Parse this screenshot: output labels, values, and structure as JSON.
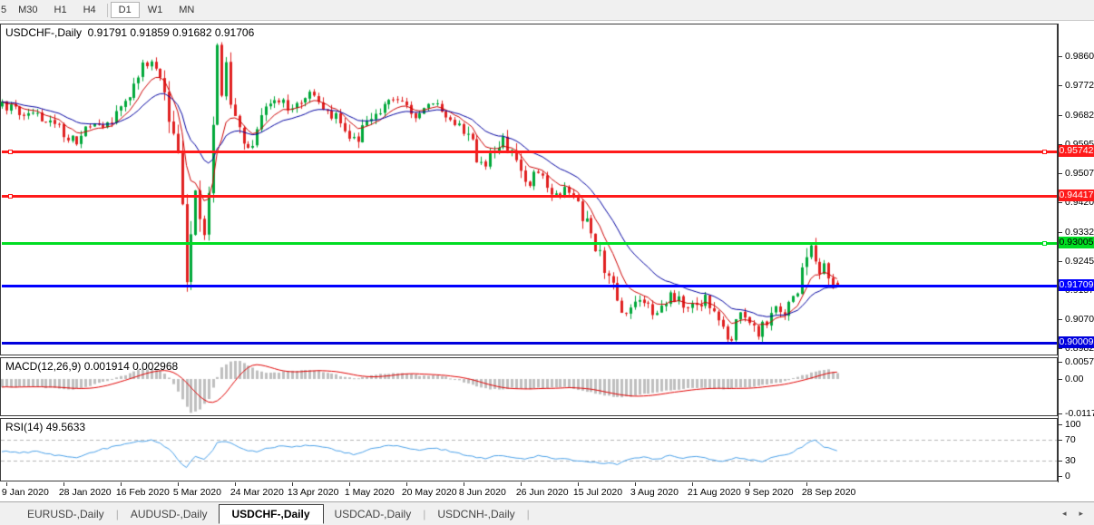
{
  "toolbar": {
    "timeframes": [
      "5",
      "M30",
      "H1",
      "H4",
      "D1",
      "W1",
      "MN"
    ],
    "active": "D1"
  },
  "price_header": {
    "symbol": "USDCHF-,Daily",
    "open": "0.91791",
    "high": "0.91859",
    "low": "0.91682",
    "close": "0.91706"
  },
  "macd_header": {
    "name": "MACD(12,26,9)",
    "main": "0.001914",
    "signal": "0.002968"
  },
  "rsi_header": {
    "name": "RSI(14)",
    "value": "49.5633"
  },
  "tab_bar": {
    "tabs": [
      "EURUSD-,Daily",
      "AUDUSD-,Daily",
      "USDCHF-,Daily",
      "USDCAD-,Daily",
      "USDCNH-,Daily"
    ],
    "active_tab": "USDCHF-,Daily",
    "scroll_left_icon": "◂",
    "scroll_right_icon": "▸"
  },
  "chart_data": {
    "type": "candlestick",
    "symbol": "USDCHF-,Daily",
    "timeframe": "D1",
    "bars": 191,
    "seed": 97531,
    "colors": {
      "bull": "#00a83a",
      "bear": "#e02020",
      "background": "#ffffff"
    },
    "y_axis": {
      "tick_labels": [
        "0.98600",
        "0.97725",
        "0.96825",
        "0.95950",
        "0.95075",
        "0.94200",
        "0.93325",
        "0.92450",
        "0.91575",
        "0.90700",
        "0.89825"
      ],
      "ylim": [
        0.89608,
        0.99581
      ]
    },
    "x_axis": {
      "tick_labels": [
        "9 Jan 2020",
        "28 Jan 2020",
        "16 Feb 2020",
        "5 Mar 2020",
        "24 Mar 2020",
        "13 Apr 2020",
        "1 May 2020",
        "20 May 2020",
        "8 Jun 2020",
        "26 Jun 2020",
        "15 Jul 2020",
        "3 Aug 2020",
        "21 Aug 2020",
        "9 Sep 2020",
        "28 Sep 2020"
      ],
      "first_tick_bar_index": 1,
      "bars_per_tick": 13
    },
    "last_bar_ohlc": {
      "open": 0.91791,
      "high": 0.91859,
      "low": 0.91682,
      "close": 0.91706
    },
    "price_path": [
      [
        0,
        0.9718
      ],
      [
        4,
        0.9695
      ],
      [
        8,
        0.9683
      ],
      [
        12,
        0.9655
      ],
      [
        15,
        0.9622
      ],
      [
        17,
        0.9605
      ],
      [
        19,
        0.9638
      ],
      [
        22,
        0.9652
      ],
      [
        25,
        0.9672
      ],
      [
        28,
        0.9705
      ],
      [
        30,
        0.9762
      ],
      [
        32,
        0.9828
      ],
      [
        34,
        0.984
      ],
      [
        36,
        0.9808
      ],
      [
        37,
        0.9775
      ],
      [
        38,
        0.97
      ],
      [
        39,
        0.964
      ],
      [
        40,
        0.956
      ],
      [
        41,
        0.942
      ],
      [
        42,
        0.9195
      ],
      [
        43,
        0.932
      ],
      [
        44,
        0.945
      ],
      [
        45,
        0.9395
      ],
      [
        46,
        0.931
      ],
      [
        47,
        0.944
      ],
      [
        48,
        0.966
      ],
      [
        49,
        0.9893
      ],
      [
        50,
        0.976
      ],
      [
        51,
        0.982
      ],
      [
        52,
        0.97
      ],
      [
        54,
        0.9648
      ],
      [
        56,
        0.9585
      ],
      [
        58,
        0.964
      ],
      [
        60,
        0.9692
      ],
      [
        63,
        0.973
      ],
      [
        66,
        0.97
      ],
      [
        69,
        0.9748
      ],
      [
        72,
        0.9718
      ],
      [
        75,
        0.9688
      ],
      [
        78,
        0.9638
      ],
      [
        80,
        0.9605
      ],
      [
        83,
        0.9658
      ],
      [
        86,
        0.97
      ],
      [
        89,
        0.9726
      ],
      [
        92,
        0.9708
      ],
      [
        95,
        0.9678
      ],
      [
        98,
        0.9712
      ],
      [
        101,
        0.9688
      ],
      [
        104,
        0.9655
      ],
      [
        106,
        0.9615
      ],
      [
        108,
        0.9558
      ],
      [
        110,
        0.9528
      ],
      [
        112,
        0.958
      ],
      [
        114,
        0.9615
      ],
      [
        116,
        0.9558
      ],
      [
        118,
        0.9502
      ],
      [
        120,
        0.9472
      ],
      [
        122,
        0.9512
      ],
      [
        124,
        0.9482
      ],
      [
        126,
        0.9445
      ],
      [
        128,
        0.9468
      ],
      [
        130,
        0.9432
      ],
      [
        132,
        0.9385
      ],
      [
        134,
        0.9322
      ],
      [
        136,
        0.9252
      ],
      [
        138,
        0.9182
      ],
      [
        140,
        0.9132
      ],
      [
        142,
        0.9082
      ],
      [
        144,
        0.9112
      ],
      [
        146,
        0.9132
      ],
      [
        148,
        0.9082
      ],
      [
        150,
        0.9108
      ],
      [
        152,
        0.9142
      ],
      [
        154,
        0.9122
      ],
      [
        156,
        0.9092
      ],
      [
        158,
        0.9112
      ],
      [
        160,
        0.9132
      ],
      [
        162,
        0.9082
      ],
      [
        164,
        0.9042
      ],
      [
        166,
        0.9006
      ],
      [
        168,
        0.9082
      ],
      [
        170,
        0.9052
      ],
      [
        172,
        0.9022
      ],
      [
        174,
        0.9072
      ],
      [
        176,
        0.9102
      ],
      [
        178,
        0.9082
      ],
      [
        180,
        0.9122
      ],
      [
        181,
        0.9162
      ],
      [
        182,
        0.9212
      ],
      [
        183,
        0.9252
      ],
      [
        184,
        0.9285
      ],
      [
        185,
        0.9242
      ],
      [
        186,
        0.9195
      ],
      [
        187,
        0.9225
      ],
      [
        188,
        0.9185
      ],
      [
        189,
        0.9155
      ],
      [
        190,
        0.9171
      ]
    ],
    "moving_averages": [
      {
        "name": "fast-ma",
        "period": 8,
        "color": "#cc0000"
      },
      {
        "name": "slow-ma",
        "period": 20,
        "color": "#0000a0"
      }
    ],
    "levels": [
      {
        "price": 0.95742,
        "label": "0.95742",
        "color": "#ff1a1a",
        "label_text_color": "#ffffff",
        "thickness": 3,
        "handles": [
          "left",
          "right"
        ]
      },
      {
        "price": 0.94417,
        "label": "0.94417",
        "color": "#ff1a1a",
        "label_text_color": "#ffffff",
        "thickness": 3,
        "handles": [
          "left"
        ]
      },
      {
        "price": 0.93005,
        "label": "0.93005",
        "color": "#00dd22",
        "label_text_color": "#000000",
        "thickness": 3,
        "handles": [
          "right"
        ]
      },
      {
        "price": 0.91709,
        "label": "0.91709",
        "color": "#0000ff",
        "label_text_color": "#ffffff",
        "thickness": 3,
        "handles": []
      },
      {
        "price": 0.90009,
        "label": "0.90009",
        "color": "#0000dd",
        "label_text_color": "#ffffff",
        "thickness": 3,
        "handles": []
      }
    ],
    "macd": {
      "label": "MACD(12,26,9)",
      "main_value": 0.001914,
      "signal_value": 0.002968,
      "axis_labels": [
        "0.005744",
        "0.00",
        "-0.011738"
      ],
      "axis_values": [
        0.005744,
        0,
        -0.011738
      ],
      "ylim": [
        -0.01271,
        0.00744
      ],
      "histogram_color": "#bfbfbf",
      "signal_color": "#e00000",
      "histogram_path": [
        [
          0,
          -0.0028
        ],
        [
          6,
          -0.0026
        ],
        [
          12,
          -0.0031
        ],
        [
          16,
          -0.0036
        ],
        [
          20,
          -0.0022
        ],
        [
          24,
          -0.0006
        ],
        [
          28,
          0.0014
        ],
        [
          32,
          0.0036
        ],
        [
          36,
          0.003
        ],
        [
          38,
          0.0004
        ],
        [
          40,
          -0.0042
        ],
        [
          42,
          -0.0095
        ],
        [
          43,
          -0.0117
        ],
        [
          45,
          -0.0104
        ],
        [
          47,
          -0.0068
        ],
        [
          48,
          -0.003
        ],
        [
          49,
          0.0008
        ],
        [
          50,
          0.0038
        ],
        [
          52,
          0.0058
        ],
        [
          54,
          0.0062
        ],
        [
          56,
          0.0046
        ],
        [
          58,
          0.003
        ],
        [
          60,
          0.002
        ],
        [
          63,
          0.0023
        ],
        [
          66,
          0.0028
        ],
        [
          69,
          0.0032
        ],
        [
          72,
          0.0028
        ],
        [
          75,
          0.0019
        ],
        [
          78,
          0.0007
        ],
        [
          80,
          0.0001
        ],
        [
          83,
          0.0009
        ],
        [
          86,
          0.0016
        ],
        [
          89,
          0.0021
        ],
        [
          92,
          0.0018
        ],
        [
          95,
          0.0012
        ],
        [
          98,
          0.0013
        ],
        [
          101,
          0.0008
        ],
        [
          104,
          -0.0006
        ],
        [
          107,
          -0.0021
        ],
        [
          110,
          -0.0033
        ],
        [
          113,
          -0.0036
        ],
        [
          116,
          -0.0031
        ],
        [
          119,
          -0.0036
        ],
        [
          122,
          -0.0031
        ],
        [
          125,
          -0.0029
        ],
        [
          128,
          -0.0027
        ],
        [
          131,
          -0.0036
        ],
        [
          134,
          -0.0046
        ],
        [
          137,
          -0.0056
        ],
        [
          140,
          -0.0063
        ],
        [
          143,
          -0.0059
        ],
        [
          146,
          -0.0051
        ],
        [
          149,
          -0.0044
        ],
        [
          152,
          -0.0039
        ],
        [
          155,
          -0.0034
        ],
        [
          158,
          -0.0029
        ],
        [
          161,
          -0.0032
        ],
        [
          164,
          -0.0035
        ],
        [
          167,
          -0.0029
        ],
        [
          170,
          -0.0027
        ],
        [
          173,
          -0.0021
        ],
        [
          176,
          -0.0014
        ],
        [
          179,
          -0.0004
        ],
        [
          182,
          0.0012
        ],
        [
          184,
          0.0021
        ],
        [
          186,
          0.0029
        ],
        [
          188,
          0.0033
        ],
        [
          190,
          0.0019
        ]
      ]
    },
    "rsi": {
      "label": "RSI(14)",
      "value": 49.5633,
      "levels": [
        70,
        30
      ],
      "axis_labels": [
        "100",
        "70",
        "30",
        "0"
      ],
      "axis_values": [
        100,
        70,
        30,
        0
      ],
      "ylim": [
        0,
        100
      ],
      "line_color": "#4aa0e8",
      "level_line_color": "#b5b5b5",
      "path": [
        [
          0,
          48
        ],
        [
          4,
          45
        ],
        [
          8,
          47
        ],
        [
          12,
          41
        ],
        [
          15,
          37
        ],
        [
          17,
          35
        ],
        [
          19,
          43
        ],
        [
          22,
          50
        ],
        [
          25,
          56
        ],
        [
          28,
          61
        ],
        [
          31,
          67
        ],
        [
          34,
          69
        ],
        [
          36,
          64
        ],
        [
          37,
          58
        ],
        [
          39,
          45
        ],
        [
          41,
          22
        ],
        [
          42,
          18
        ],
        [
          43,
          30
        ],
        [
          44,
          38
        ],
        [
          46,
          33
        ],
        [
          48,
          50
        ],
        [
          49,
          64
        ],
        [
          51,
          66
        ],
        [
          53,
          60
        ],
        [
          56,
          50
        ],
        [
          58,
          46
        ],
        [
          60,
          53
        ],
        [
          63,
          58
        ],
        [
          66,
          55
        ],
        [
          69,
          60
        ],
        [
          72,
          57
        ],
        [
          75,
          52
        ],
        [
          78,
          45
        ],
        [
          80,
          42
        ],
        [
          83,
          50
        ],
        [
          86,
          56
        ],
        [
          89,
          59
        ],
        [
          92,
          55
        ],
        [
          95,
          50
        ],
        [
          98,
          54
        ],
        [
          101,
          50
        ],
        [
          104,
          44
        ],
        [
          107,
          38
        ],
        [
          110,
          33
        ],
        [
          113,
          41
        ],
        [
          116,
          36
        ],
        [
          119,
          32
        ],
        [
          122,
          39
        ],
        [
          125,
          35
        ],
        [
          128,
          33
        ],
        [
          131,
          30
        ],
        [
          134,
          27
        ],
        [
          137,
          25
        ],
        [
          140,
          23
        ],
        [
          143,
          33
        ],
        [
          146,
          37
        ],
        [
          149,
          33
        ],
        [
          152,
          39
        ],
        [
          155,
          35
        ],
        [
          158,
          38
        ],
        [
          161,
          33
        ],
        [
          164,
          29
        ],
        [
          167,
          36
        ],
        [
          170,
          32
        ],
        [
          173,
          29
        ],
        [
          176,
          38
        ],
        [
          179,
          43
        ],
        [
          182,
          56
        ],
        [
          184,
          66
        ],
        [
          185,
          70
        ],
        [
          186,
          62
        ],
        [
          187,
          57
        ],
        [
          188,
          54
        ],
        [
          189,
          51
        ],
        [
          190,
          49.56
        ]
      ]
    }
  }
}
